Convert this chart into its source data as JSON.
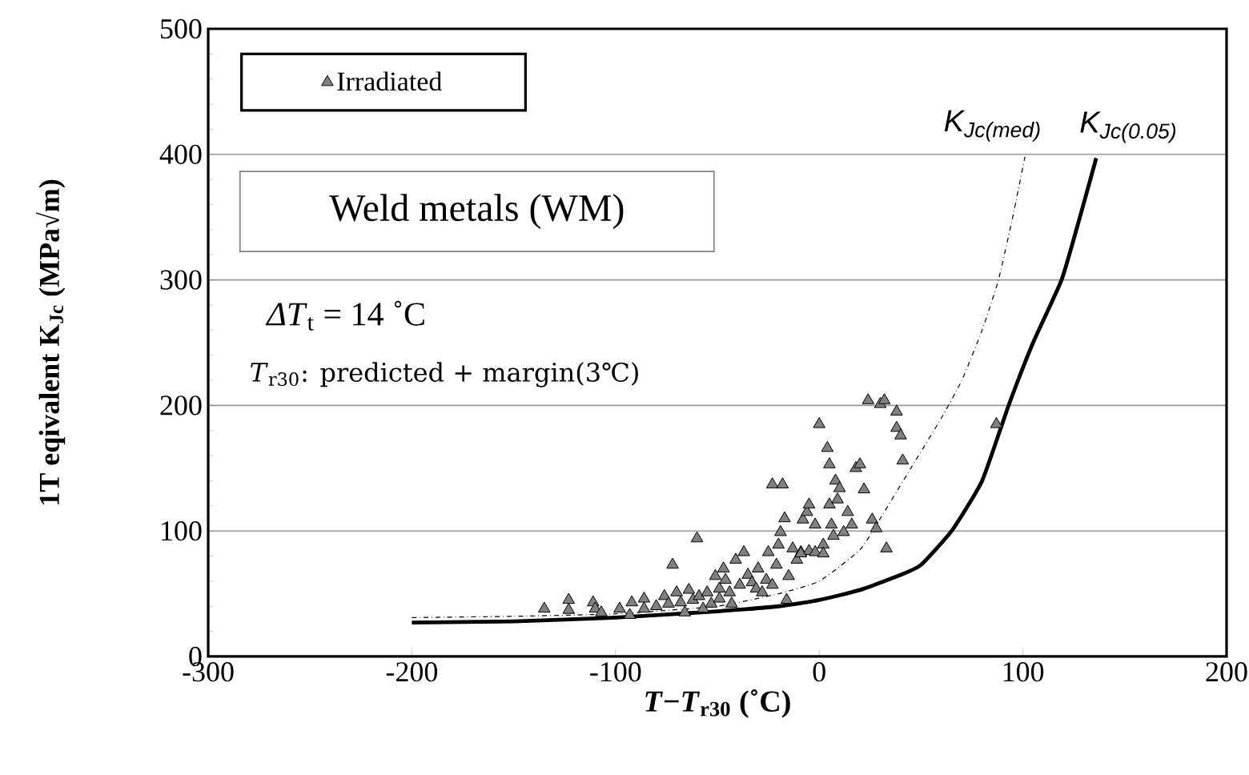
{
  "chart_data": {
    "type": "scatter",
    "title": "Weld metals (WM)",
    "xlabel": "*T*−*T*$_{r30}$   (˚C)",
    "ylabel": "1T eqivalent K$_{Jc}$   (MPa√m)",
    "xlim": [
      -300,
      200
    ],
    "xticks": [
      -300,
      -200,
      -100,
      0,
      100,
      200
    ],
    "ylim": [
      0,
      500
    ],
    "yticks": [
      0,
      100,
      200,
      300,
      400,
      500
    ],
    "grid": "y",
    "legend": "top left",
    "annotations": [
      "*ΔT*$_{t}$ =  14 ˚C",
      "*T*$_{r30}$:  predicted + margin(3℃)"
    ],
    "series": [
      {
        "name": "Irradiated",
        "type": "scatter",
        "color": "#808080",
        "marker": "triangle",
        "x": [
          -135,
          -123,
          -123,
          -111,
          -110,
          -107,
          -98,
          -92,
          -93,
          -86,
          -86,
          -80,
          -76,
          -74,
          -72,
          -70,
          -68,
          -66,
          -64,
          -62,
          -60,
          -59,
          -57,
          -55,
          -53,
          -51,
          -49,
          -49,
          -47,
          -46,
          -44,
          -43,
          -41,
          -39,
          -37,
          -35,
          -33,
          -31,
          -30,
          -28,
          -26,
          -25,
          -23,
          -21,
          -20,
          -19,
          -17,
          -15,
          -13,
          -11,
          -9,
          -8,
          -6,
          -5,
          -2,
          0,
          2,
          4,
          5,
          5,
          6,
          7,
          8,
          9,
          10,
          12,
          14,
          16,
          18,
          20,
          22,
          24,
          26,
          28,
          30,
          32,
          33,
          38,
          38,
          40,
          41,
          87,
          -23,
          -18,
          -16,
          -5,
          -9,
          -2,
          2
        ],
        "values": [
          38,
          45,
          37,
          43,
          38,
          35,
          38,
          43,
          33,
          46,
          38,
          40,
          48,
          42,
          73,
          51,
          43,
          35,
          53,
          45,
          94,
          48,
          38,
          51,
          42,
          64,
          54,
          46,
          70,
          61,
          51,
          42,
          77,
          57,
          83,
          65,
          59,
          54,
          70,
          51,
          61,
          83,
          57,
          73,
          89,
          99,
          110,
          64,
          86,
          77,
          83,
          109,
          115,
          121,
          105,
          185,
          89,
          166,
          153,
          121,
          105,
          96,
          140,
          125,
          134,
          99,
          115,
          105,
          150,
          153,
          133,
          204,
          109,
          102,
          201,
          204,
          86,
          195,
          182,
          176,
          156,
          185,
          137,
          137,
          45,
          84,
          82,
          83,
          82
        ]
      },
      {
        "name": "K$_{Jc(med)}$",
        "type": "line",
        "color": "#000000",
        "line_style": "dashed",
        "x": [
          -200,
          -150,
          -100,
          -50,
          -20,
          0,
          20,
          30,
          45,
          60,
          70,
          80,
          88,
          95,
          101
        ],
        "values": [
          31,
          32,
          34,
          40,
          50,
          60,
          85,
          110,
          150,
          190,
          220,
          260,
          300,
          350,
          398
        ]
      },
      {
        "name": "K$_{Jc(0.05)}$",
        "type": "line",
        "color": "#000000",
        "line_style": "solid",
        "x": [
          -200,
          -150,
          -100,
          -50,
          -20,
          0,
          20,
          40,
          50,
          65,
          80,
          93,
          105,
          119,
          128,
          136
        ],
        "values": [
          27,
          28,
          31,
          36,
          40,
          45,
          53,
          65,
          73,
          100,
          140,
          200,
          250,
          300,
          350,
          397
        ]
      }
    ]
  }
}
